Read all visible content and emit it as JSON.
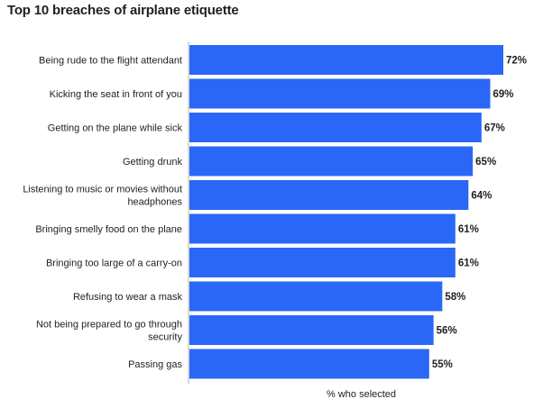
{
  "chart_data": {
    "type": "bar",
    "orientation": "horizontal",
    "title": "Top 10 breaches of airplane etiquette",
    "xlabel": "% who selected",
    "ylabel": "",
    "categories": [
      "Being rude to the flight attendant",
      "Kicking the seat in front of you",
      "Getting on the plane while sick",
      "Getting drunk",
      "Listening to music or movies without headphones",
      "Bringing smelly food on the plane",
      "Bringing too large of a carry-on",
      "Refusing to wear a mask",
      "Not being prepared to go through security",
      "Passing gas"
    ],
    "category_lines": [
      [
        "Being rude to the flight attendant"
      ],
      [
        "Kicking the seat in front of you"
      ],
      [
        "Getting on the plane while sick"
      ],
      [
        "Getting drunk"
      ],
      [
        "Listening to music or movies without",
        "headphones"
      ],
      [
        "Bringing smelly food on the plane"
      ],
      [
        "Bringing too large of a carry-on"
      ],
      [
        "Refusing to wear a mask"
      ],
      [
        "Not being prepared to go through",
        "security"
      ],
      [
        "Passing gas"
      ]
    ],
    "values": [
      72,
      69,
      67,
      65,
      64,
      61,
      61,
      58,
      56,
      55
    ],
    "value_labels": [
      "72%",
      "69%",
      "67%",
      "65%",
      "64%",
      "61%",
      "61%",
      "58%",
      "56%",
      "55%"
    ],
    "xlim": [
      0,
      72
    ],
    "grid": false,
    "legend": "none",
    "bar_color": "#2b67f6"
  }
}
